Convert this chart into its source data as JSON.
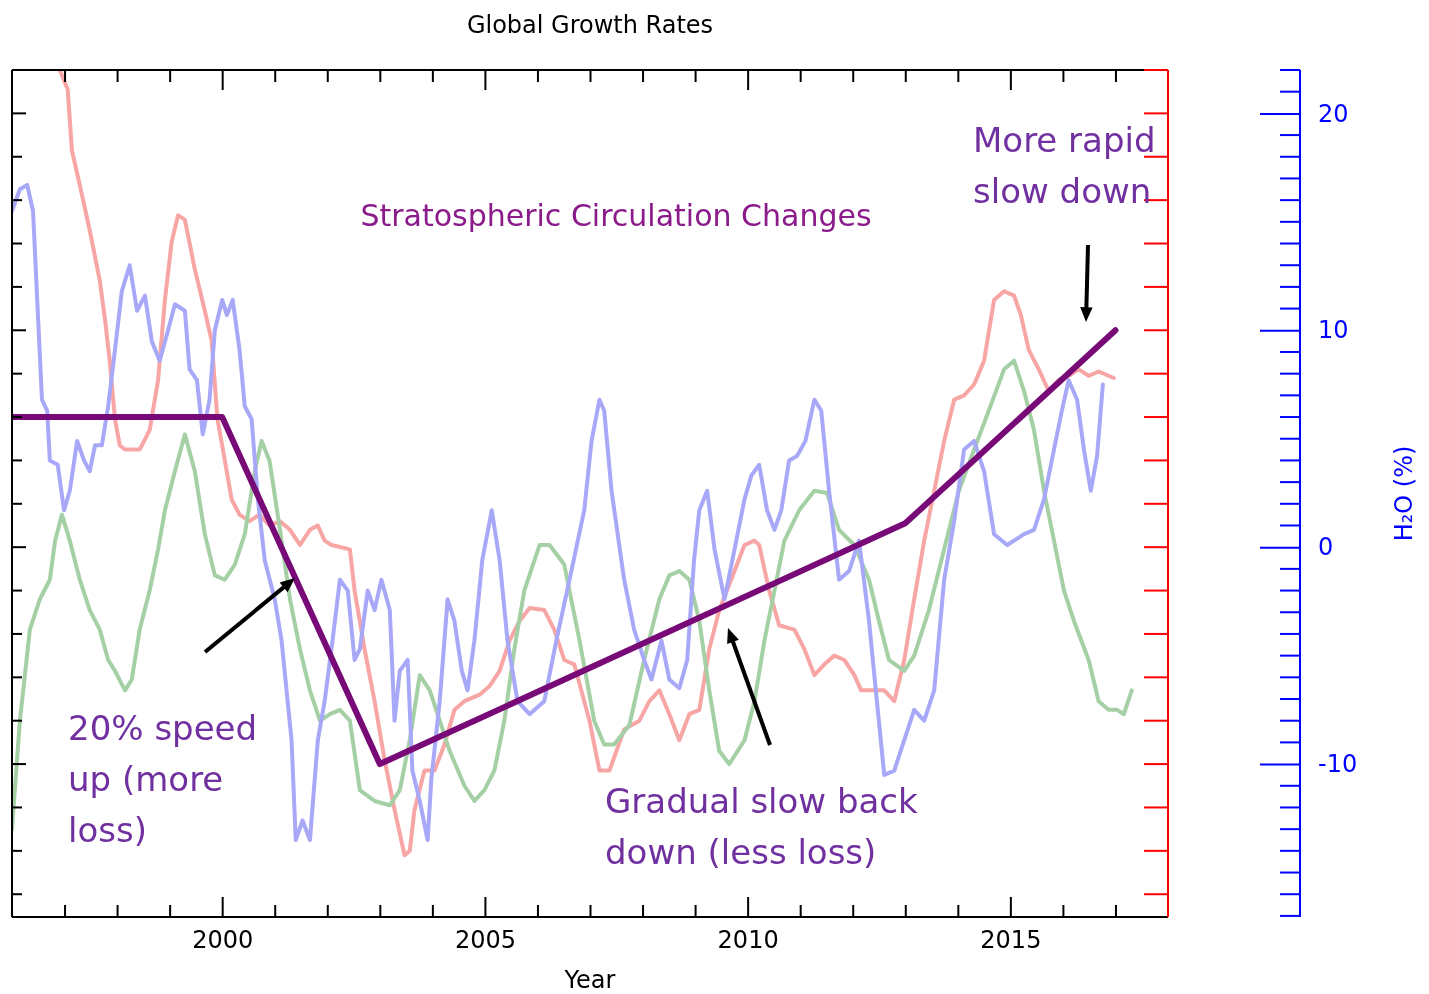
{
  "chart_data": {
    "type": "line",
    "title": "Global Growth Rates",
    "xlabel": "Year",
    "ylabel": "H₂O (%)",
    "xlim": [
      1996,
      2018
    ],
    "xticks": [
      {
        "value": 1997,
        "label": null
      },
      {
        "value": 1998,
        "label": null
      },
      {
        "value": 1999,
        "label": null
      },
      2000,
      {
        "value": 2001,
        "label": null
      },
      {
        "value": 2002,
        "label": null
      },
      {
        "value": 2003,
        "label": null
      },
      {
        "value": 2004,
        "label": null
      },
      2005,
      {
        "value": 2006,
        "label": null
      },
      {
        "value": 2007,
        "label": null
      },
      {
        "value": 2008,
        "label": null
      },
      {
        "value": 2009,
        "label": null
      },
      2010,
      {
        "value": 2011,
        "label": null
      },
      {
        "value": 2012,
        "label": null
      },
      {
        "value": 2013,
        "label": null
      },
      {
        "value": 2014,
        "label": null
      },
      2015,
      {
        "value": 2016,
        "label": null
      },
      {
        "value": 2017,
        "label": null
      }
    ],
    "ylim": [
      -17.05,
      22
    ],
    "yticks": [
      -10,
      0,
      10,
      20
    ],
    "series": [
      {
        "color": "#f8a5a5",
        "x": [
          1996.91,
          1997.06,
          1997.14,
          1997.29,
          1997.48,
          1997.67,
          1997.77,
          1997.86,
          1997.96,
          1998.05,
          1998.15,
          1998.43,
          1998.62,
          1998.78,
          1998.91,
          1999.04,
          1999.16,
          1999.29,
          1999.48,
          1999.67,
          1999.8,
          1999.91,
          2000.05,
          2000.18,
          2000.33,
          2000.52,
          2000.71,
          2000.9,
          2001.1,
          2001.29,
          2001.48,
          2001.67,
          2001.82,
          2001.95,
          2002.08,
          2002.43,
          2002.52,
          2002.71,
          2002.9,
          2003.09,
          2003.28,
          2003.47,
          2003.57,
          2003.66,
          2003.85,
          2004.04,
          2004.23,
          2004.42,
          2004.61,
          2004.9,
          2005.09,
          2005.28,
          2005.47,
          2005.66,
          2005.85,
          2006.13,
          2006.32,
          2006.51,
          2006.7,
          2006.99,
          2007.18,
          2007.37,
          2007.65,
          2007.94,
          2008.13,
          2008.32,
          2008.51,
          2008.7,
          2008.89,
          2009.08,
          2009.27,
          2009.46,
          2009.75,
          2009.94,
          2010.13,
          2010.22,
          2010.41,
          2010.6,
          2010.89,
          2011.08,
          2011.27,
          2011.46,
          2011.65,
          2011.84,
          2012.03,
          2012.16,
          2012.6,
          2012.79,
          2012.98,
          2013.17,
          2013.36,
          2013.55,
          2013.74,
          2013.93,
          2014.12,
          2014.31,
          2014.5,
          2014.69,
          2014.88,
          2015.07,
          2015.2,
          2015.35,
          2015.54,
          2015.73,
          2015.92,
          2016.11,
          2016.3,
          2016.49,
          2016.68,
          2016.97
        ],
        "values": [
          22.0,
          21.1,
          18.3,
          16.7,
          14.6,
          12.3,
          10.5,
          8.6,
          5.9,
          4.7,
          4.5,
          4.5,
          5.4,
          7.7,
          11.4,
          14.1,
          15.3,
          15.1,
          12.8,
          10.9,
          9.5,
          5.9,
          4.0,
          2.2,
          1.5,
          1.2,
          1.5,
          1.0,
          1.2,
          0.8,
          0.1,
          0.8,
          1.0,
          0.3,
          0.1,
          -0.1,
          -2.0,
          -4.7,
          -7.1,
          -9.8,
          -12.1,
          -14.2,
          -14.0,
          -12.1,
          -10.3,
          -10.3,
          -9.1,
          -7.5,
          -7.1,
          -6.8,
          -6.4,
          -5.7,
          -4.3,
          -3.4,
          -2.8,
          -2.9,
          -3.8,
          -5.2,
          -5.4,
          -8.0,
          -10.3,
          -10.3,
          -8.4,
          -8.0,
          -7.1,
          -6.6,
          -7.7,
          -8.9,
          -7.7,
          -7.5,
          -4.7,
          -2.9,
          -1.1,
          0.1,
          0.3,
          0.1,
          -2.0,
          -3.6,
          -3.8,
          -4.7,
          -5.9,
          -5.4,
          -5.0,
          -5.2,
          -5.9,
          -6.6,
          -6.6,
          -7.1,
          -5.2,
          -2.4,
          0.3,
          2.6,
          4.9,
          6.8,
          7.0,
          7.5,
          8.6,
          11.4,
          11.8,
          11.6,
          10.7,
          9.1,
          8.2,
          7.2,
          7.7,
          7.9,
          8.2,
          7.9,
          8.1,
          7.8
        ]
      },
      {
        "color": "#a5d0a5",
        "x": [
          1996.0,
          1996.15,
          1996.34,
          1996.53,
          1996.72,
          1996.82,
          1996.95,
          1997.1,
          1997.29,
          1997.48,
          1997.67,
          1997.83,
          1997.96,
          1998.15,
          1998.28,
          1998.43,
          1998.62,
          1998.78,
          1998.91,
          1999.1,
          1999.29,
          1999.48,
          1999.67,
          1999.86,
          2000.05,
          2000.24,
          2000.43,
          2000.62,
          2000.75,
          2000.9,
          2001.1,
          2001.29,
          2001.48,
          2001.67,
          2001.86,
          2002.05,
          2002.24,
          2002.43,
          2002.62,
          2002.9,
          2003.19,
          2003.38,
          2003.57,
          2003.76,
          2003.95,
          2004.14,
          2004.33,
          2004.61,
          2004.8,
          2004.99,
          2005.18,
          2005.37,
          2005.56,
          2005.75,
          2006.04,
          2006.23,
          2006.51,
          2006.8,
          2007.08,
          2007.27,
          2007.46,
          2007.75,
          2008.03,
          2008.32,
          2008.51,
          2008.7,
          2008.89,
          2009.08,
          2009.27,
          2009.46,
          2009.65,
          2009.94,
          2010.13,
          2010.32,
          2010.51,
          2010.7,
          2010.98,
          2011.27,
          2011.51,
          2011.74,
          2012.03,
          2012.31,
          2012.5,
          2012.69,
          2012.98,
          2013.17,
          2013.45,
          2013.74,
          2014.02,
          2014.31,
          2014.59,
          2014.88,
          2015.07,
          2015.26,
          2015.45,
          2015.64,
          2015.83,
          2016.02,
          2016.21,
          2016.49,
          2016.68,
          2016.87,
          2017.03,
          2017.16,
          2017.31
        ],
        "values": [
          -13.0,
          -8.0,
          -3.8,
          -2.4,
          -1.5,
          0.3,
          1.5,
          0.3,
          -1.5,
          -2.9,
          -3.8,
          -5.2,
          -5.7,
          -6.6,
          -6.1,
          -3.8,
          -2.0,
          -0.1,
          1.7,
          3.5,
          5.2,
          3.5,
          0.6,
          -1.3,
          -1.5,
          -0.8,
          0.6,
          3.5,
          4.9,
          4.0,
          0.8,
          -2.4,
          -4.7,
          -6.6,
          -8.0,
          -7.7,
          -7.5,
          -8.0,
          -11.2,
          -11.7,
          -11.9,
          -11.2,
          -8.9,
          -5.9,
          -6.6,
          -8.0,
          -9.4,
          -11.0,
          -11.7,
          -11.2,
          -10.3,
          -8.0,
          -4.7,
          -2.0,
          0.1,
          0.1,
          -0.8,
          -4.3,
          -8.0,
          -9.1,
          -9.1,
          -8.2,
          -5.2,
          -2.4,
          -1.3,
          -1.1,
          -1.5,
          -3.4,
          -6.6,
          -9.4,
          -10.0,
          -8.9,
          -7.1,
          -4.3,
          -2.0,
          0.3,
          1.7,
          2.6,
          2.5,
          0.8,
          0.1,
          -1.5,
          -3.4,
          -5.2,
          -5.7,
          -5.0,
          -2.9,
          -0.1,
          2.6,
          4.5,
          6.3,
          8.2,
          8.6,
          7.2,
          5.4,
          2.6,
          0.3,
          -2.0,
          -3.4,
          -5.2,
          -7.1,
          -7.5,
          -7.5,
          -7.7,
          -6.6
        ]
      },
      {
        "color": "#a8a8f8",
        "x": [
          1996.0,
          1996.15,
          1996.29,
          1996.4,
          1996.49,
          1996.57,
          1996.67,
          1996.72,
          1996.87,
          1996.99,
          1997.1,
          1997.24,
          1997.37,
          1997.48,
          1997.58,
          1997.71,
          1997.83,
          1997.96,
          1998.09,
          1998.24,
          1998.38,
          1998.53,
          1998.66,
          1998.81,
          1998.97,
          1999.1,
          1999.29,
          1999.38,
          1999.52,
          1999.63,
          1999.76,
          1999.86,
          2000.0,
          2000.09,
          2000.2,
          2000.33,
          2000.43,
          2000.56,
          2000.68,
          2000.81,
          2001.0,
          2001.13,
          2001.32,
          2001.4,
          2001.53,
          2001.67,
          2001.82,
          2001.95,
          2002.1,
          2002.24,
          2002.39,
          2002.52,
          2002.62,
          2002.77,
          2002.9,
          2003.03,
          2003.19,
          2003.28,
          2003.38,
          2003.53,
          2003.62,
          2003.76,
          2003.91,
          2003.98,
          2004.14,
          2004.29,
          2004.42,
          2004.56,
          2004.67,
          2004.8,
          2004.95,
          2005.13,
          2005.28,
          2005.43,
          2005.62,
          2005.85,
          2006.13,
          2006.36,
          2006.61,
          2006.89,
          2007.03,
          2007.18,
          2007.27,
          2007.41,
          2007.65,
          2007.84,
          2008.03,
          2008.17,
          2008.36,
          2008.51,
          2008.7,
          2008.85,
          2008.98,
          2009.08,
          2009.23,
          2009.37,
          2009.56,
          2009.75,
          2009.94,
          2010.07,
          2010.22,
          2010.37,
          2010.51,
          2010.64,
          2010.79,
          2010.94,
          2011.1,
          2011.27,
          2011.4,
          2011.55,
          2011.74,
          2011.93,
          2012.12,
          2012.31,
          2012.46,
          2012.6,
          2012.79,
          2012.98,
          2013.17,
          2013.36,
          2013.55,
          2013.74,
          2013.93,
          2014.12,
          2014.31,
          2014.5,
          2014.69,
          2014.94,
          2015.07,
          2015.26,
          2015.45,
          2015.64,
          2015.83,
          2015.98,
          2016.11,
          2016.27,
          2016.4,
          2016.53,
          2016.65,
          2016.76
        ],
        "values": [
          15.5,
          16.5,
          16.7,
          15.5,
          10.9,
          6.8,
          6.3,
          4.0,
          3.8,
          1.7,
          2.6,
          4.9,
          4.0,
          3.5,
          4.7,
          4.7,
          6.5,
          9.1,
          11.8,
          13.0,
          10.9,
          11.6,
          9.5,
          8.6,
          10.0,
          11.2,
          10.9,
          8.2,
          7.7,
          5.2,
          6.8,
          10.0,
          11.4,
          10.7,
          11.4,
          9.1,
          6.5,
          5.9,
          2.2,
          -0.6,
          -2.4,
          -4.3,
          -8.9,
          -13.5,
          -12.6,
          -13.5,
          -8.9,
          -7.1,
          -4.3,
          -1.5,
          -2.0,
          -5.2,
          -4.7,
          -2.0,
          -2.9,
          -1.5,
          -2.9,
          -8.0,
          -5.7,
          -5.2,
          -10.3,
          -11.7,
          -13.5,
          -10.7,
          -7.1,
          -2.4,
          -3.4,
          -5.7,
          -6.6,
          -4.3,
          -0.6,
          1.7,
          -0.6,
          -4.3,
          -7.1,
          -7.7,
          -7.1,
          -4.3,
          -1.5,
          1.7,
          4.9,
          6.8,
          6.3,
          2.6,
          -1.5,
          -3.8,
          -5.2,
          -6.1,
          -4.3,
          -6.1,
          -6.5,
          -5.2,
          -0.6,
          1.7,
          2.6,
          -0.1,
          -2.4,
          -0.1,
          2.2,
          3.3,
          3.8,
          1.7,
          0.8,
          1.7,
          4.0,
          4.2,
          4.9,
          6.8,
          6.3,
          2.6,
          -1.5,
          -1.1,
          0.3,
          -3.4,
          -7.1,
          -10.5,
          -10.3,
          -8.9,
          -7.5,
          -8.0,
          -6.6,
          -1.5,
          1.2,
          4.5,
          4.9,
          3.5,
          0.6,
          0.1,
          0.3,
          0.6,
          0.8,
          2.2,
          4.5,
          6.3,
          7.7,
          6.8,
          4.5,
          2.6,
          4.2,
          7.5
        ]
      },
      {
        "color": "#780a78",
        "x": [
          1996,
          2000,
          2003,
          2013,
          2017
        ],
        "values": [
          6,
          6,
          -10,
          1.1,
          10
        ]
      }
    ],
    "annotations": [
      "Stratospheric Circulation Changes",
      "20% speed up (more loss)",
      "Gradual slow back down (less loss)",
      "More rapid slow down"
    ]
  }
}
